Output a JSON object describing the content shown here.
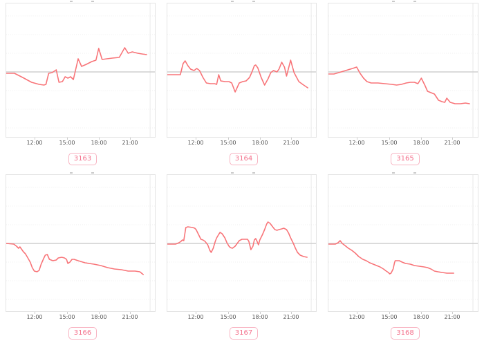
{
  "page": {
    "background": "#ffffff",
    "layout": "2x3 grid of small line charts",
    "clipped_titles_note": "chart titles are cut off at top of each cell; only tiny fragments visible"
  },
  "ui": {
    "colors": {
      "line": "#f87478",
      "zero_line": "#cfcfcf",
      "plot_border": "#e4e4e4",
      "gridline": "#efefef",
      "vertical_gridline": "#e9e9e9",
      "tick_text": "#555555",
      "badge_text": "#f4708b",
      "badge_border": "#f8b4c2",
      "title_fragment": "#c9c9c9",
      "background": "#ffffff"
    }
  },
  "chart_data": [
    {
      "type": "line",
      "badge": "3163",
      "x_tick_labels": [
        "12:00",
        "15:00",
        "18:00",
        "21:00"
      ],
      "x_tick_pos": [
        41,
        88,
        134,
        179
      ],
      "x_range": [
        0,
        217
      ],
      "y_range": [
        0,
        193
      ],
      "zero_line_y": 99,
      "gridline_ys": [
        18,
        45,
        72,
        126,
        153,
        180
      ],
      "vertical_gridline_x": 210,
      "grid": true,
      "legend": false,
      "points": [
        [
          0,
          101
        ],
        [
          12,
          101
        ],
        [
          24,
          107
        ],
        [
          37,
          114
        ],
        [
          48,
          117
        ],
        [
          55,
          118
        ],
        [
          58,
          117
        ],
        [
          62,
          101
        ],
        [
          67,
          100
        ],
        [
          73,
          96
        ],
        [
          77,
          114
        ],
        [
          82,
          113
        ],
        [
          86,
          106
        ],
        [
          90,
          108
        ],
        [
          94,
          106
        ],
        [
          98,
          110
        ],
        [
          105,
          80
        ],
        [
          110,
          91
        ],
        [
          117,
          88
        ],
        [
          125,
          84
        ],
        [
          131,
          82
        ],
        [
          135,
          65
        ],
        [
          140,
          81
        ],
        [
          147,
          80
        ],
        [
          155,
          79
        ],
        [
          165,
          78
        ],
        [
          173,
          64
        ],
        [
          178,
          72
        ],
        [
          184,
          70
        ],
        [
          192,
          72
        ],
        [
          198,
          73
        ],
        [
          205,
          74
        ]
      ]
    },
    {
      "type": "line",
      "badge": "3164",
      "x_tick_labels": [
        "12:00",
        "15:00",
        "18:00",
        "21:00"
      ],
      "x_tick_pos": [
        41,
        88,
        134,
        179
      ],
      "x_range": [
        0,
        217
      ],
      "y_range": [
        0,
        193
      ],
      "zero_line_y": 99,
      "gridline_ys": [
        18,
        45,
        72,
        126,
        153,
        180
      ],
      "vertical_gridline_x": 210,
      "grid": true,
      "legend": false,
      "points": [
        [
          0,
          103
        ],
        [
          19,
          103
        ],
        [
          23,
          87
        ],
        [
          26,
          83
        ],
        [
          30,
          90
        ],
        [
          34,
          95
        ],
        [
          39,
          97
        ],
        [
          43,
          94
        ],
        [
          47,
          97
        ],
        [
          52,
          107
        ],
        [
          57,
          115
        ],
        [
          63,
          116
        ],
        [
          69,
          116
        ],
        [
          72,
          117
        ],
        [
          75,
          103
        ],
        [
          78,
          112
        ],
        [
          84,
          113
        ],
        [
          90,
          113
        ],
        [
          94,
          115
        ],
        [
          99,
          128
        ],
        [
          105,
          115
        ],
        [
          110,
          113
        ],
        [
          115,
          112
        ],
        [
          120,
          107
        ],
        [
          124,
          98
        ],
        [
          127,
          90
        ],
        [
          129,
          89
        ],
        [
          132,
          93
        ],
        [
          137,
          107
        ],
        [
          142,
          118
        ],
        [
          147,
          109
        ],
        [
          151,
          100
        ],
        [
          155,
          97
        ],
        [
          160,
          99
        ],
        [
          163,
          95
        ],
        [
          167,
          85
        ],
        [
          171,
          92
        ],
        [
          174,
          105
        ],
        [
          180,
          82
        ],
        [
          185,
          100
        ],
        [
          192,
          113
        ],
        [
          199,
          118
        ],
        [
          205,
          122
        ]
      ]
    },
    {
      "type": "line",
      "badge": "3165",
      "x_tick_labels": [
        "12:00",
        "15:00",
        "18:00",
        "21:00"
      ],
      "x_tick_pos": [
        41,
        88,
        134,
        179
      ],
      "x_range": [
        0,
        217
      ],
      "y_range": [
        0,
        193
      ],
      "zero_line_y": 99,
      "gridline_ys": [
        18,
        45,
        72,
        126,
        153,
        180
      ],
      "vertical_gridline_x": 210,
      "grid": true,
      "legend": false,
      "points": [
        [
          0,
          102
        ],
        [
          8,
          102
        ],
        [
          15,
          100
        ],
        [
          25,
          97
        ],
        [
          35,
          94
        ],
        [
          41,
          92
        ],
        [
          46,
          101
        ],
        [
          51,
          108
        ],
        [
          56,
          113
        ],
        [
          62,
          115
        ],
        [
          72,
          115
        ],
        [
          82,
          116
        ],
        [
          92,
          117
        ],
        [
          99,
          118
        ],
        [
          106,
          117
        ],
        [
          113,
          115
        ],
        [
          119,
          114
        ],
        [
          125,
          114
        ],
        [
          130,
          116
        ],
        [
          135,
          108
        ],
        [
          140,
          118
        ],
        [
          144,
          127
        ],
        [
          149,
          129
        ],
        [
          154,
          131
        ],
        [
          160,
          140
        ],
        [
          165,
          142
        ],
        [
          169,
          143
        ],
        [
          172,
          137
        ],
        [
          177,
          143
        ],
        [
          184,
          145
        ],
        [
          192,
          145
        ],
        [
          199,
          144
        ],
        [
          205,
          145
        ]
      ]
    },
    {
      "type": "line",
      "badge": "3166",
      "x_tick_labels": [
        "12:00",
        "15:00",
        "18:00",
        "21:00"
      ],
      "x_tick_pos": [
        41,
        88,
        134,
        179
      ],
      "x_range": [
        0,
        217
      ],
      "y_range": [
        0,
        197
      ],
      "zero_line_y": 99,
      "gridline_ys": [
        18,
        45,
        72,
        126,
        153,
        180
      ],
      "vertical_gridline_x": 210,
      "grid": true,
      "legend": false,
      "points": [
        [
          0,
          99
        ],
        [
          11,
          100
        ],
        [
          15,
          103
        ],
        [
          18,
          106
        ],
        [
          20,
          104
        ],
        [
          25,
          111
        ],
        [
          28,
          114
        ],
        [
          31,
          119
        ],
        [
          35,
          126
        ],
        [
          38,
          134
        ],
        [
          41,
          139
        ],
        [
          45,
          140
        ],
        [
          48,
          138
        ],
        [
          51,
          129
        ],
        [
          55,
          120
        ],
        [
          57,
          116
        ],
        [
          60,
          115
        ],
        [
          63,
          122
        ],
        [
          68,
          124
        ],
        [
          73,
          123
        ],
        [
          76,
          120
        ],
        [
          81,
          119
        ],
        [
          85,
          120
        ],
        [
          88,
          122
        ],
        [
          90,
          128
        ],
        [
          93,
          126
        ],
        [
          96,
          122
        ],
        [
          99,
          122
        ],
        [
          105,
          124
        ],
        [
          115,
          127
        ],
        [
          128,
          129
        ],
        [
          138,
          131
        ],
        [
          148,
          134
        ],
        [
          158,
          136
        ],
        [
          168,
          137
        ],
        [
          178,
          139
        ],
        [
          188,
          139
        ],
        [
          195,
          140
        ],
        [
          200,
          144
        ]
      ]
    },
    {
      "type": "line",
      "badge": "3167",
      "x_tick_labels": [
        "12:00",
        "15:00",
        "18:00",
        "21:00"
      ],
      "x_tick_pos": [
        41,
        88,
        134,
        179
      ],
      "x_range": [
        0,
        217
      ],
      "y_range": [
        0,
        197
      ],
      "zero_line_y": 99,
      "gridline_ys": [
        18,
        45,
        72,
        126,
        153,
        180
      ],
      "vertical_gridline_x": 210,
      "grid": true,
      "legend": false,
      "points": [
        [
          0,
          100
        ],
        [
          12,
          100
        ],
        [
          17,
          98
        ],
        [
          20,
          96
        ],
        [
          22,
          94
        ],
        [
          24,
          95
        ],
        [
          27,
          76
        ],
        [
          30,
          75
        ],
        [
          37,
          76
        ],
        [
          40,
          77
        ],
        [
          42,
          79
        ],
        [
          45,
          85
        ],
        [
          49,
          93
        ],
        [
          52,
          94
        ],
        [
          55,
          96
        ],
        [
          59,
          101
        ],
        [
          62,
          109
        ],
        [
          64,
          112
        ],
        [
          67,
          106
        ],
        [
          70,
          96
        ],
        [
          72,
          91
        ],
        [
          75,
          86
        ],
        [
          77,
          83
        ],
        [
          80,
          85
        ],
        [
          84,
          91
        ],
        [
          87,
          98
        ],
        [
          90,
          103
        ],
        [
          92,
          105
        ],
        [
          95,
          106
        ],
        [
          99,
          103
        ],
        [
          102,
          99
        ],
        [
          105,
          95
        ],
        [
          109,
          93
        ],
        [
          114,
          93
        ],
        [
          117,
          93
        ],
        [
          119,
          96
        ],
        [
          122,
          108
        ],
        [
          125,
          103
        ],
        [
          127,
          94
        ],
        [
          129,
          92
        ],
        [
          131,
          96
        ],
        [
          133,
          101
        ],
        [
          135,
          94
        ],
        [
          139,
          86
        ],
        [
          142,
          79
        ],
        [
          145,
          71
        ],
        [
          147,
          68
        ],
        [
          150,
          70
        ],
        [
          153,
          74
        ],
        [
          157,
          79
        ],
        [
          160,
          80
        ],
        [
          163,
          79
        ],
        [
          167,
          78
        ],
        [
          170,
          77
        ],
        [
          174,
          79
        ],
        [
          177,
          84
        ],
        [
          180,
          91
        ],
        [
          184,
          99
        ],
        [
          187,
          106
        ],
        [
          190,
          112
        ],
        [
          194,
          116
        ],
        [
          199,
          118
        ],
        [
          204,
          119
        ]
      ]
    },
    {
      "type": "line",
      "badge": "3168",
      "x_tick_labels": [
        "12:00",
        "15:00",
        "18:00",
        "21:00"
      ],
      "x_tick_pos": [
        41,
        88,
        134,
        179
      ],
      "x_range": [
        0,
        217
      ],
      "y_range": [
        0,
        197
      ],
      "zero_line_y": 99,
      "gridline_ys": [
        18,
        45,
        72,
        126,
        153,
        180
      ],
      "vertical_gridline_x": 210,
      "grid": true,
      "legend": false,
      "points": [
        [
          0,
          100
        ],
        [
          10,
          100
        ],
        [
          14,
          98
        ],
        [
          17,
          95
        ],
        [
          20,
          99
        ],
        [
          24,
          102
        ],
        [
          29,
          106
        ],
        [
          34,
          109
        ],
        [
          39,
          113
        ],
        [
          44,
          118
        ],
        [
          47,
          120
        ],
        [
          50,
          122
        ],
        [
          55,
          124
        ],
        [
          60,
          127
        ],
        [
          65,
          129
        ],
        [
          70,
          131
        ],
        [
          75,
          133
        ],
        [
          80,
          136
        ],
        [
          84,
          139
        ],
        [
          87,
          141
        ],
        [
          89,
          143
        ],
        [
          91,
          142
        ],
        [
          94,
          136
        ],
        [
          96,
          127
        ],
        [
          97,
          124
        ],
        [
          100,
          124
        ],
        [
          103,
          124
        ],
        [
          107,
          126
        ],
        [
          112,
          128
        ],
        [
          119,
          129
        ],
        [
          125,
          131
        ],
        [
          132,
          132
        ],
        [
          139,
          133
        ],
        [
          144,
          134
        ],
        [
          149,
          136
        ],
        [
          154,
          139
        ],
        [
          159,
          140
        ],
        [
          165,
          141
        ],
        [
          172,
          142
        ],
        [
          179,
          142
        ],
        [
          182,
          142
        ]
      ]
    }
  ]
}
